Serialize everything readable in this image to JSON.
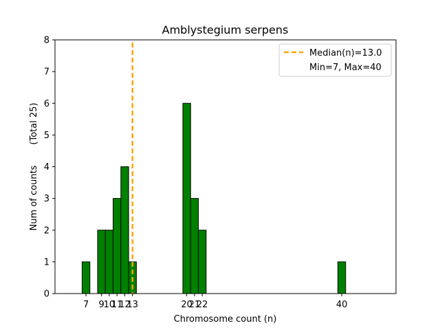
{
  "chart_data": {
    "type": "bar",
    "title": "Amblystegium serpens",
    "xlabel": "Chromosome count (n)",
    "ylabel": "Num of counts",
    "ylabel_total": "(Total 25)",
    "xlim": [
      3,
      47
    ],
    "ylim": [
      0,
      8
    ],
    "yticks": [
      0,
      1,
      2,
      3,
      4,
      5,
      6,
      7,
      8
    ],
    "xticks": [
      7,
      9,
      10,
      11,
      12,
      13,
      20,
      21,
      22,
      40
    ],
    "bars": [
      {
        "x": 7,
        "count": 1
      },
      {
        "x": 9,
        "count": 2
      },
      {
        "x": 10,
        "count": 2
      },
      {
        "x": 11,
        "count": 3
      },
      {
        "x": 12,
        "count": 4
      },
      {
        "x": 13,
        "count": 1
      },
      {
        "x": 20,
        "count": 6
      },
      {
        "x": 21,
        "count": 3
      },
      {
        "x": 22,
        "count": 2
      },
      {
        "x": 40,
        "count": 1
      }
    ],
    "median": 13.0,
    "legend": {
      "placement": "top-right",
      "median_label": "Median(n)=13.0",
      "range_label": "Min=7, Max=40"
    },
    "colors": {
      "bar_fill": "#008000",
      "bar_edge": "#000000",
      "median_line": "#FFA500"
    }
  }
}
